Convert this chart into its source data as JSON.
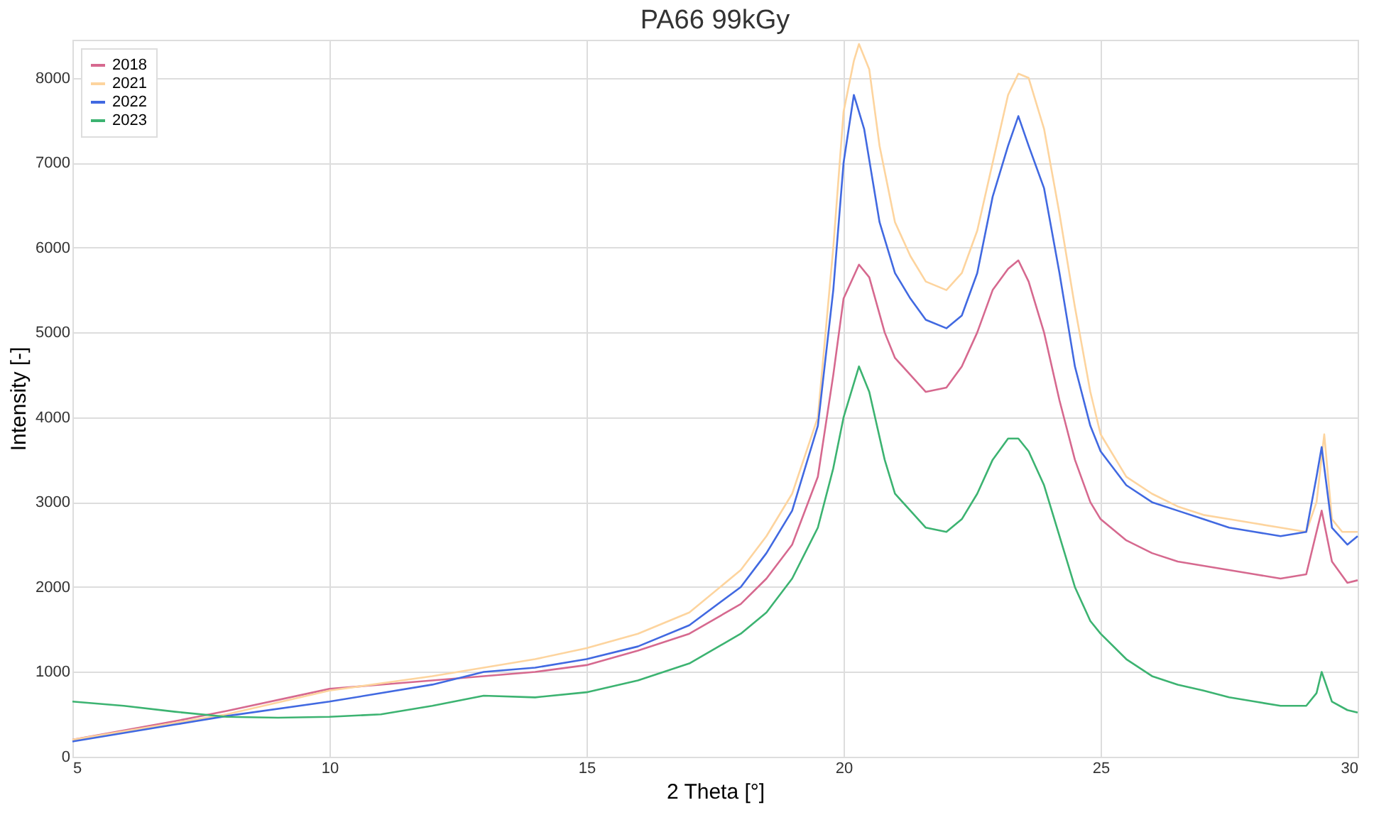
{
  "chart_data": {
    "type": "line",
    "title": "PA66 99kGy",
    "xlabel": "2 Theta [°]",
    "ylabel": "Intensity [-]",
    "xlim": [
      5,
      30
    ],
    "xticks": [
      5,
      10,
      15,
      20,
      25,
      30
    ],
    "ylim": [
      0,
      8450
    ],
    "yticks": [
      0,
      1000,
      2000,
      3000,
      4000,
      5000,
      6000,
      7000,
      8000
    ],
    "grid": true,
    "legend": "top left",
    "line_style": "solid",
    "marker": "none",
    "series": [
      {
        "name": "2018",
        "color": "#d6698f",
        "x": [
          5,
          7,
          8,
          10,
          12,
          13,
          14,
          15,
          16,
          17,
          18,
          18.5,
          19,
          19.5,
          19.8,
          20,
          20.3,
          20.5,
          20.8,
          21,
          21.3,
          21.6,
          22,
          22.3,
          22.6,
          22.9,
          23.2,
          23.4,
          23.6,
          23.9,
          24.2,
          24.5,
          24.8,
          25,
          25.5,
          26,
          26.5,
          27,
          27.5,
          28,
          28.5,
          29,
          29.3,
          29.5,
          29.8,
          30
        ],
        "values": [
          200,
          420,
          540,
          800,
          900,
          950,
          1000,
          1080,
          1250,
          1450,
          1800,
          2100,
          2500,
          3300,
          4500,
          5400,
          5800,
          5650,
          5000,
          4700,
          4500,
          4300,
          4350,
          4600,
          5000,
          5500,
          5750,
          5850,
          5600,
          5000,
          4200,
          3500,
          3000,
          2800,
          2550,
          2400,
          2300,
          2250,
          2200,
          2150,
          2100,
          2150,
          2900,
          2300,
          2050,
          2080
        ]
      },
      {
        "name": "2021",
        "color": "#fdd49e",
        "x": [
          5,
          7,
          8,
          10,
          12,
          13,
          14,
          15,
          16,
          17,
          18,
          18.5,
          19,
          19.5,
          19.8,
          20,
          20.2,
          20.3,
          20.5,
          20.7,
          21,
          21.3,
          21.6,
          22,
          22.3,
          22.6,
          22.9,
          23.2,
          23.4,
          23.6,
          23.9,
          24.2,
          24.5,
          24.8,
          25,
          25.5,
          26,
          26.5,
          27,
          27.5,
          28,
          28.5,
          29,
          29.2,
          29.35,
          29.5,
          29.7,
          30
        ],
        "values": [
          200,
          400,
          500,
          780,
          950,
          1050,
          1150,
          1280,
          1450,
          1700,
          2200,
          2600,
          3100,
          4000,
          6000,
          7600,
          8200,
          8400,
          8100,
          7200,
          6300,
          5900,
          5600,
          5500,
          5700,
          6200,
          7000,
          7800,
          8050,
          8000,
          7400,
          6400,
          5300,
          4300,
          3800,
          3300,
          3100,
          2950,
          2850,
          2800,
          2750,
          2700,
          2650,
          3000,
          3800,
          2800,
          2650,
          2650
        ]
      },
      {
        "name": "2022",
        "color": "#4169e1",
        "x": [
          5,
          7,
          8,
          10,
          12,
          13,
          14,
          15,
          16,
          17,
          18,
          18.5,
          19,
          19.5,
          19.8,
          20,
          20.2,
          20.4,
          20.7,
          21,
          21.3,
          21.6,
          22,
          22.3,
          22.6,
          22.9,
          23.2,
          23.4,
          23.6,
          23.9,
          24.2,
          24.5,
          24.8,
          25,
          25.5,
          26,
          26.5,
          27,
          27.5,
          28,
          28.5,
          29,
          29.2,
          29.3,
          29.5,
          29.8,
          30
        ],
        "values": [
          180,
          380,
          480,
          650,
          850,
          1000,
          1050,
          1150,
          1300,
          1550,
          2000,
          2400,
          2900,
          3900,
          5500,
          7000,
          7800,
          7400,
          6300,
          5700,
          5400,
          5150,
          5050,
          5200,
          5700,
          6600,
          7200,
          7550,
          7200,
          6700,
          5700,
          4600,
          3900,
          3600,
          3200,
          3000,
          2900,
          2800,
          2700,
          2650,
          2600,
          2650,
          3300,
          3650,
          2700,
          2500,
          2600
        ]
      },
      {
        "name": "2023",
        "color": "#3cb371",
        "x": [
          5,
          6,
          7,
          8,
          9,
          10,
          11,
          12,
          13,
          14,
          15,
          16,
          17,
          18,
          18.5,
          19,
          19.5,
          19.8,
          20,
          20.3,
          20.5,
          20.8,
          21,
          21.3,
          21.6,
          22,
          22.3,
          22.6,
          22.9,
          23.2,
          23.4,
          23.6,
          23.9,
          24.2,
          24.5,
          24.8,
          25,
          25.5,
          26,
          26.5,
          27,
          27.5,
          28,
          28.5,
          29,
          29.2,
          29.3,
          29.5,
          29.8,
          30
        ],
        "values": [
          650,
          600,
          530,
          470,
          460,
          470,
          500,
          600,
          720,
          700,
          760,
          900,
          1100,
          1450,
          1700,
          2100,
          2700,
          3400,
          4000,
          4600,
          4300,
          3500,
          3100,
          2900,
          2700,
          2650,
          2800,
          3100,
          3500,
          3750,
          3750,
          3600,
          3200,
          2600,
          2000,
          1600,
          1450,
          1150,
          950,
          850,
          780,
          700,
          650,
          600,
          600,
          750,
          1000,
          650,
          550,
          520
        ]
      }
    ]
  }
}
